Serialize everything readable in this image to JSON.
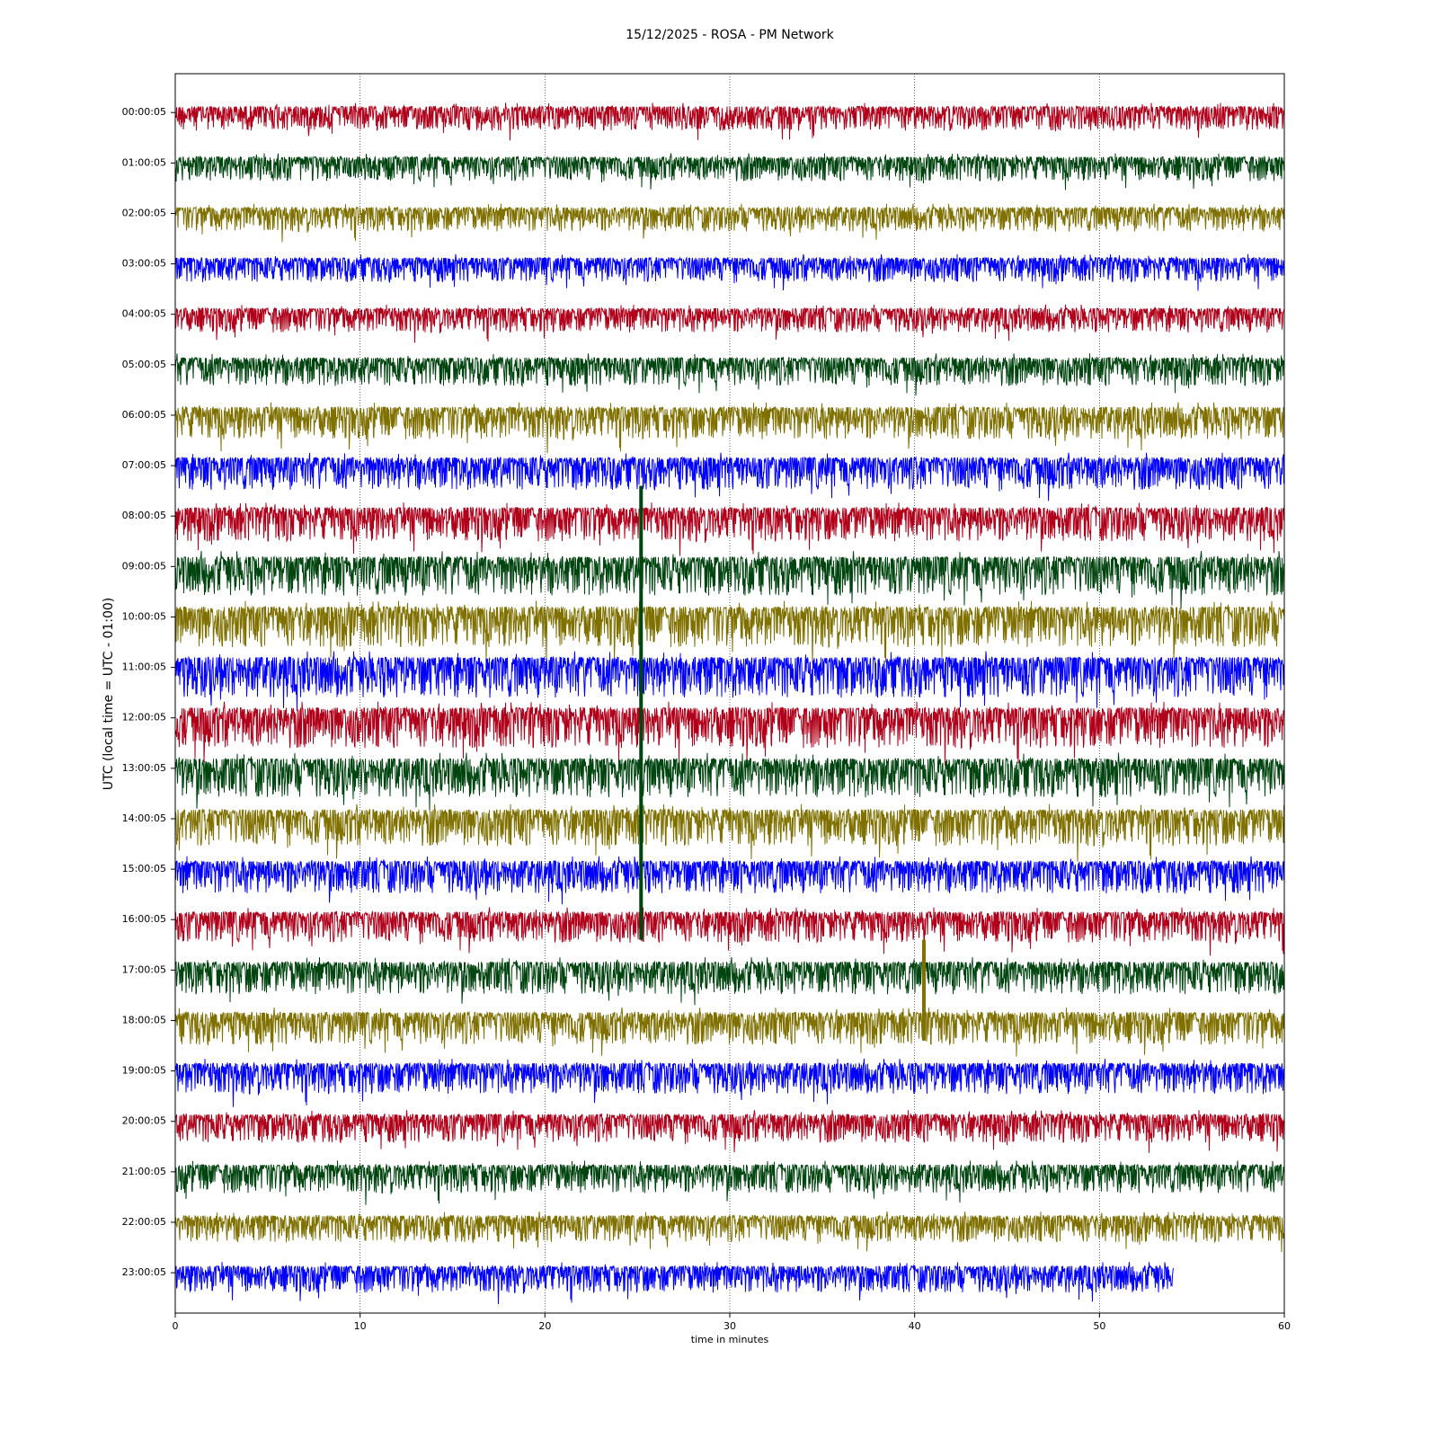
{
  "chart_data": {
    "type": "helicorder",
    "title": "15/12/2025 - ROSA - PM Network",
    "xlabel": "time in minutes",
    "ylabel": "UTC (local time = UTC - 01:00)",
    "xlim": [
      0,
      60
    ],
    "xticks": [
      0,
      10,
      20,
      30,
      40,
      50,
      60
    ],
    "ylim": [
      -0.77,
      23.8
    ],
    "y_inverted": true,
    "yticks": [
      {
        "value": 0,
        "label": "00:00:05"
      },
      {
        "value": 1,
        "label": "01:00:05"
      },
      {
        "value": 2,
        "label": "02:00:05"
      },
      {
        "value": 3,
        "label": "03:00:05"
      },
      {
        "value": 4,
        "label": "04:00:05"
      },
      {
        "value": 5,
        "label": "05:00:05"
      },
      {
        "value": 6,
        "label": "06:00:05"
      },
      {
        "value": 7,
        "label": "07:00:05"
      },
      {
        "value": 8,
        "label": "08:00:05"
      },
      {
        "value": 9,
        "label": "09:00:05"
      },
      {
        "value": 10,
        "label": "10:00:05"
      },
      {
        "value": 11,
        "label": "11:00:05"
      },
      {
        "value": 12,
        "label": "12:00:05"
      },
      {
        "value": 13,
        "label": "13:00:05"
      },
      {
        "value": 14,
        "label": "14:00:05"
      },
      {
        "value": 15,
        "label": "15:00:05"
      },
      {
        "value": 16,
        "label": "16:00:05"
      },
      {
        "value": 17,
        "label": "17:00:05"
      },
      {
        "value": 18,
        "label": "18:00:05"
      },
      {
        "value": 19,
        "label": "19:00:05"
      },
      {
        "value": 20,
        "label": "20:00:05"
      },
      {
        "value": 21,
        "label": "21:00:05"
      },
      {
        "value": 22,
        "label": "22:00:05"
      },
      {
        "value": 23,
        "label": "23:00:05"
      }
    ],
    "x_grid": true,
    "traces": [
      {
        "color": "#b0001a",
        "x": [
          0,
          60
        ],
        "amplitude": 0.3
      },
      {
        "color": "#00450f",
        "x": [
          0,
          60
        ],
        "amplitude": 0.3
      },
      {
        "color": "#7f7000",
        "x": [
          0,
          60
        ],
        "amplitude": 0.3
      },
      {
        "color": "#0000ff",
        "x": [
          0,
          60
        ],
        "amplitude": 0.3
      },
      {
        "color": "#b0001a",
        "x": [
          0,
          60
        ],
        "amplitude": 0.3
      },
      {
        "color": "#00450f",
        "x": [
          0,
          60
        ],
        "amplitude": 0.35
      },
      {
        "color": "#7f7000",
        "x": [
          0,
          60
        ],
        "amplitude": 0.4
      },
      {
        "color": "#0000ff",
        "x": [
          0,
          60
        ],
        "amplitude": 0.4
      },
      {
        "color": "#b0001a",
        "x": [
          0,
          60
        ],
        "amplitude": 0.42
      },
      {
        "color": "#00450f",
        "x": [
          0,
          60
        ],
        "amplitude": 0.48
      },
      {
        "color": "#7f7000",
        "x": [
          0,
          60
        ],
        "amplitude": 0.5
      },
      {
        "color": "#0000ff",
        "x": [
          0,
          60
        ],
        "amplitude": 0.5
      },
      {
        "color": "#b0001a",
        "x": [
          0,
          60
        ],
        "amplitude": 0.5
      },
      {
        "color": "#00450f",
        "x": [
          0,
          60
        ],
        "amplitude": 0.48
      },
      {
        "color": "#7f7000",
        "x": [
          0,
          60
        ],
        "amplitude": 0.45
      },
      {
        "color": "#0000ff",
        "x": [
          0,
          60
        ],
        "amplitude": 0.4
      },
      {
        "color": "#b0001a",
        "x": [
          0,
          60
        ],
        "amplitude": 0.38
      },
      {
        "color": "#00450f",
        "x": [
          0,
          60
        ],
        "amplitude": 0.4
      },
      {
        "color": "#7f7000",
        "x": [
          0,
          60
        ],
        "amplitude": 0.4
      },
      {
        "color": "#0000ff",
        "x": [
          0,
          60
        ],
        "amplitude": 0.38
      },
      {
        "color": "#b0001a",
        "x": [
          0,
          60
        ],
        "amplitude": 0.35
      },
      {
        "color": "#00450f",
        "x": [
          0,
          60
        ],
        "amplitude": 0.35
      },
      {
        "color": "#7f7000",
        "x": [
          0,
          60
        ],
        "amplitude": 0.33
      },
      {
        "color": "#0000ff",
        "x": [
          0,
          54
        ],
        "amplitude": 0.33
      }
    ],
    "events": [
      {
        "x": 25.2,
        "rows": [
          8,
          16
        ],
        "color": "#00450f"
      },
      {
        "x": 40.5,
        "rows": [
          17,
          18
        ],
        "color": "#7f7000"
      }
    ]
  }
}
